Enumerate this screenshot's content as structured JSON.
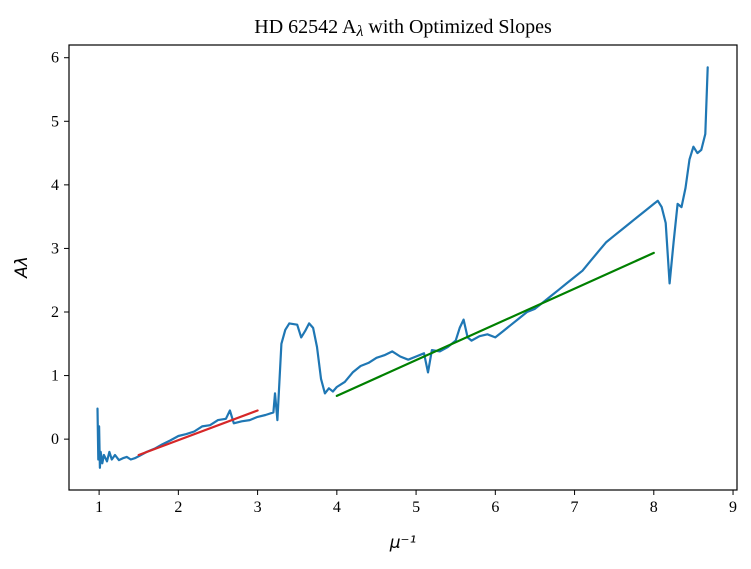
{
  "chart_data": {
    "type": "line",
    "title": "HD 62542 A$\\lambda$ with Optimized Slopes",
    "title_parts": {
      "prefix": "HD 62542 A",
      "symbol": "λ",
      "suffix": " with Optimized Slopes"
    },
    "xlabel": "μ⁻¹",
    "ylabel": "Aλ",
    "xlim": [
      0.62,
      9.05
    ],
    "ylim": [
      -0.8,
      6.2
    ],
    "x_ticks": [
      1,
      2,
      3,
      4,
      5,
      6,
      7,
      8,
      9
    ],
    "x_tick_labels": [
      "1",
      "2",
      "3",
      "4",
      "5",
      "6",
      "7",
      "8",
      "9"
    ],
    "y_ticks": [
      0,
      1,
      2,
      3,
      4,
      5,
      6
    ],
    "y_tick_labels": [
      "0",
      "1",
      "2",
      "3",
      "4",
      "5",
      "6"
    ],
    "grid": false,
    "series": [
      {
        "color": "#1f77b4",
        "x": [
          0.98,
          0.99,
          1.0,
          1.01,
          1.02,
          1.04,
          1.06,
          1.08,
          1.1,
          1.13,
          1.16,
          1.2,
          1.25,
          1.3,
          1.35,
          1.4,
          1.45,
          1.5,
          1.6,
          1.7,
          1.8,
          1.9,
          2.0,
          2.1,
          2.2,
          2.3,
          2.4,
          2.5,
          2.6,
          2.65,
          2.7,
          2.8,
          2.9,
          3.0,
          3.1,
          3.2,
          3.22,
          3.25,
          3.3,
          3.35,
          3.4,
          3.5,
          3.55,
          3.6,
          3.65,
          3.7,
          3.75,
          3.8,
          3.85,
          3.9,
          3.95,
          4.0,
          4.1,
          4.2,
          4.3,
          4.4,
          4.5,
          4.6,
          4.7,
          4.8,
          4.9,
          5.0,
          5.1,
          5.15,
          5.2,
          5.3,
          5.4,
          5.5,
          5.55,
          5.6,
          5.65,
          5.7,
          5.8,
          5.9,
          6.0,
          6.1,
          6.2,
          6.3,
          6.4,
          6.5,
          6.6,
          6.7,
          6.8,
          6.9,
          7.0,
          7.1,
          7.2,
          7.3,
          7.4,
          7.5,
          7.6,
          7.7,
          7.8,
          7.9,
          8.0,
          8.05,
          8.1,
          8.15,
          8.2,
          8.25,
          8.3,
          8.35,
          8.4,
          8.45,
          8.5,
          8.55,
          8.6,
          8.65,
          8.68
        ],
        "y": [
          0.48,
          -0.32,
          0.2,
          -0.45,
          -0.2,
          -0.38,
          -0.25,
          -0.3,
          -0.35,
          -0.2,
          -0.32,
          -0.25,
          -0.33,
          -0.3,
          -0.28,
          -0.32,
          -0.3,
          -0.27,
          -0.2,
          -0.15,
          -0.08,
          -0.02,
          0.05,
          0.08,
          0.12,
          0.2,
          0.22,
          0.3,
          0.32,
          0.45,
          0.25,
          0.28,
          0.3,
          0.35,
          0.38,
          0.42,
          0.72,
          0.3,
          1.5,
          1.72,
          1.82,
          1.8,
          1.6,
          1.7,
          1.82,
          1.75,
          1.45,
          0.95,
          0.72,
          0.8,
          0.75,
          0.82,
          0.9,
          1.05,
          1.15,
          1.2,
          1.28,
          1.32,
          1.38,
          1.3,
          1.25,
          1.3,
          1.35,
          1.05,
          1.4,
          1.38,
          1.45,
          1.55,
          1.75,
          1.88,
          1.6,
          1.55,
          1.62,
          1.65,
          1.6,
          1.7,
          1.8,
          1.9,
          2.0,
          2.05,
          2.15,
          2.25,
          2.35,
          2.45,
          2.55,
          2.65,
          2.8,
          2.95,
          3.1,
          3.2,
          3.3,
          3.4,
          3.5,
          3.6,
          3.7,
          3.75,
          3.65,
          3.4,
          2.45,
          3.1,
          3.7,
          3.65,
          3.95,
          4.4,
          4.6,
          4.5,
          4.55,
          4.8,
          5.85
        ]
      },
      {
        "color": "#d62728",
        "x": [
          1.5,
          3.0
        ],
        "y": [
          -0.25,
          0.45
        ]
      },
      {
        "color": "#008000",
        "x": [
          4.0,
          8.0
        ],
        "y": [
          0.68,
          2.93
        ]
      }
    ]
  }
}
